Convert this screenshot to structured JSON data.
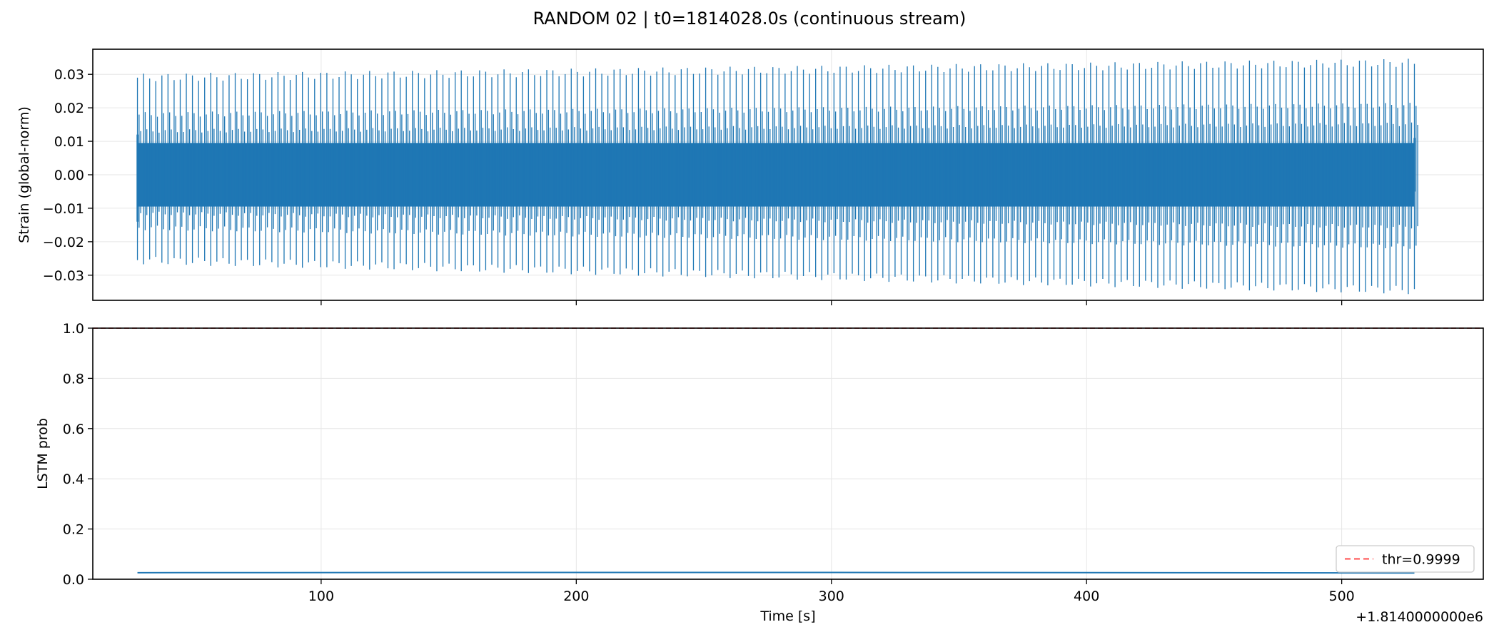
{
  "title": "RANDOM 02 | t0=1814028.0s (continuous stream)",
  "colors": {
    "signal": "#1f77b4",
    "threshold": "#ff4d4d",
    "grid": "#e6e6e6",
    "axis": "#000000"
  },
  "chart_data": [
    {
      "type": "line",
      "panel": "top",
      "ylabel": "Strain (global-norm)",
      "xlim": [
        1814010.5,
        1814555.5
      ],
      "ylim": [
        -0.0375,
        0.0375
      ],
      "x_ticks": [
        1814100,
        1814200,
        1814300,
        1814400,
        1814500
      ],
      "y_ticks": [
        0.03,
        0.02,
        0.01,
        0.0,
        -0.01,
        -0.02,
        -0.03
      ],
      "y_tick_labels": [
        "0.03",
        "0.02",
        "0.01",
        "0.00",
        "−0.01",
        "−0.02",
        "−0.03"
      ],
      "grid": true,
      "series": [
        {
          "x_start": 1814028.0,
          "x_end": 1814528.5,
          "dense_band": [
            -0.0095,
            0.0095
          ],
          "spike_count": 210,
          "spike_max": [
            0.029,
            0.0335
          ],
          "spike_min": [
            -0.0255,
            -0.0345
          ]
        }
      ]
    },
    {
      "type": "line",
      "panel": "bottom",
      "xlabel": "Time [s]",
      "ylabel": "LSTM prob",
      "xlim": [
        1814010.5,
        1814555.5
      ],
      "ylim": [
        0.0,
        1.0
      ],
      "x_ticks": [
        1814100,
        1814200,
        1814300,
        1814400,
        1814500
      ],
      "x_tick_labels": [
        "100",
        "200",
        "300",
        "400",
        "500"
      ],
      "x_offset_label": "+1.8140000000e6",
      "y_ticks": [
        0.0,
        0.2,
        0.4,
        0.6,
        0.8,
        1.0
      ],
      "y_tick_labels": [
        "0.0",
        "0.2",
        "0.4",
        "0.6",
        "0.8",
        "1.0"
      ],
      "grid": true,
      "legend_position": "lower-right",
      "legend": [
        {
          "label": "thr=0.9999",
          "style": "dashed",
          "color": "#ff4d4d"
        }
      ],
      "series": [
        {
          "x": [
            1814028.0,
            1814150,
            1814300,
            1814450,
            1814528.5
          ],
          "y": [
            0.026,
            0.027,
            0.027,
            0.026,
            0.025
          ]
        }
      ],
      "threshold": 0.9999
    }
  ]
}
